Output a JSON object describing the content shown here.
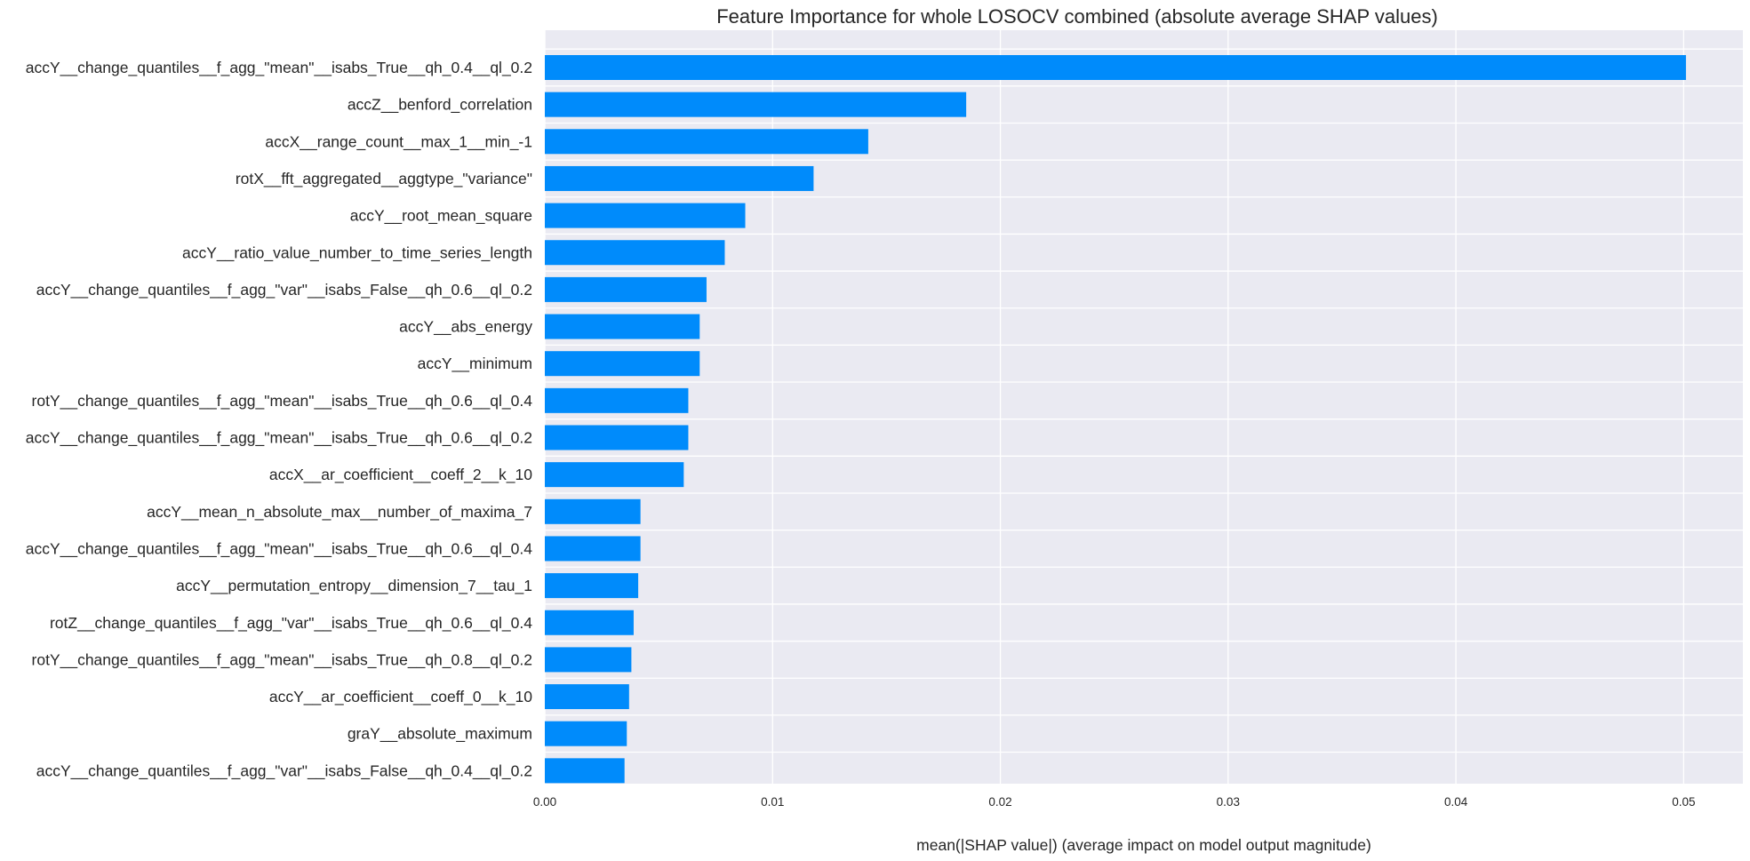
{
  "chart_data": {
    "type": "bar",
    "orientation": "horizontal",
    "title": "Feature Importance for whole LOSOCV combined (absolute average SHAP values)",
    "xlabel": "mean(|SHAP value|) (average impact on model output magnitude)",
    "ylabel": "",
    "xlim": [
      0,
      0.0526
    ],
    "xticks": [
      "0.00",
      "0.01",
      "0.02",
      "0.03",
      "0.04",
      "0.05"
    ],
    "grid": true,
    "colors": {
      "bar": "#008bfb",
      "plot_bg": "#eaeaf2",
      "grid": "#ffffff",
      "text": "#262626"
    },
    "categories": [
      "accY__change_quantiles__f_agg_\"mean\"__isabs_True__qh_0.4__ql_0.2",
      "accZ__benford_correlation",
      "accX__range_count__max_1__min_-1",
      "rotX__fft_aggregated__aggtype_\"variance\"",
      "accY__root_mean_square",
      "accY__ratio_value_number_to_time_series_length",
      "accY__change_quantiles__f_agg_\"var\"__isabs_False__qh_0.6__ql_0.2",
      "accY__abs_energy",
      "accY__minimum",
      "rotY__change_quantiles__f_agg_\"mean\"__isabs_True__qh_0.6__ql_0.4",
      "accY__change_quantiles__f_agg_\"mean\"__isabs_True__qh_0.6__ql_0.2",
      "accX__ar_coefficient__coeff_2__k_10",
      "accY__mean_n_absolute_max__number_of_maxima_7",
      "accY__change_quantiles__f_agg_\"mean\"__isabs_True__qh_0.6__ql_0.4",
      "accY__permutation_entropy__dimension_7__tau_1",
      "rotZ__change_quantiles__f_agg_\"var\"__isabs_True__qh_0.6__ql_0.4",
      "rotY__change_quantiles__f_agg_\"mean\"__isabs_True__qh_0.8__ql_0.2",
      "accY__ar_coefficient__coeff_0__k_10",
      "graY__absolute_maximum",
      "accY__change_quantiles__f_agg_\"var\"__isabs_False__qh_0.4__ql_0.2"
    ],
    "values": [
      0.0501,
      0.0185,
      0.0142,
      0.0118,
      0.0088,
      0.0079,
      0.0071,
      0.0068,
      0.0068,
      0.0063,
      0.0063,
      0.0061,
      0.0042,
      0.0042,
      0.0041,
      0.0039,
      0.0038,
      0.0037,
      0.0036,
      0.0035
    ]
  }
}
